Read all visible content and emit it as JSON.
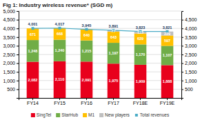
{
  "chart_data": {
    "type": "bar",
    "title": "Fig 1: Industry wireless revenue* (SGD m)",
    "categories": [
      "FY14",
      "FY15",
      "FY16",
      "FY17",
      "FY18E",
      "FY19E"
    ],
    "stacked": true,
    "data_labels": true,
    "grid": true,
    "legend": "bottom",
    "series": [
      {
        "name": "SingTel",
        "color": "#e8001c",
        "values": [
          2082,
          2110,
          2091,
          1975,
          1909,
          1888
        ],
        "value_labels": [
          "2,082",
          "2,110",
          "2,091",
          "1,975",
          "1,909",
          "1,888"
        ]
      },
      {
        "name": "StarHub",
        "color": "#70ad47",
        "values": [
          1248,
          1240,
          1215,
          1197,
          1170,
          1107
        ],
        "value_labels": [
          "1,248",
          "1,240",
          "1,215",
          "1,197",
          "1,170",
          "1,107"
        ]
      },
      {
        "name": "M1",
        "color": "#ffc000",
        "values": [
          671,
          668,
          640,
          643,
          629,
          597
        ]
      },
      {
        "name": "New players",
        "color": "#bfbfbf",
        "values": [
          0,
          0,
          0,
          77,
          115,
          229
        ],
        "value_labels": [
          null,
          null,
          null,
          "77",
          "115",
          "229"
        ]
      },
      {
        "name": "Total revenues",
        "color": "#4bacc6",
        "type": "line",
        "marker": "square",
        "axis": "y2",
        "values": [
          4001,
          4017,
          3945,
          3891,
          3823,
          3821
        ],
        "value_labels": [
          "4,001",
          "4,017",
          "3,945",
          "3,891",
          "3,823",
          "3,821"
        ]
      }
    ],
    "ylim": [
      0,
      5000
    ],
    "yticks": [
      500,
      {
        "value": 1000,
        "label": "1,000"
      },
      {
        "value": 1500,
        "label": "1,500"
      },
      {
        "value": 2000,
        "label": "2,000"
      },
      {
        "value": 2500,
        "label": "2,500"
      },
      {
        "value": 3000,
        "label": "3,000"
      },
      {
        "value": 3500,
        "label": "3,500"
      },
      {
        "value": 4000,
        "label": "4,000"
      },
      {
        "value": 4500,
        "label": "4,500"
      },
      {
        "value": 5000,
        "label": "5,000"
      }
    ],
    "y2lim": [
      0,
      5000
    ],
    "y2ticks": [
      500,
      {
        "value": 1000,
        "label": "1,000"
      },
      {
        "value": 1500,
        "label": "1,500"
      },
      {
        "value": 2000,
        "label": "2,000"
      },
      {
        "value": 2500,
        "label": "2,500"
      },
      {
        "value": 3000,
        "label": "3,000"
      },
      {
        "value": 3500,
        "label": "3,500"
      },
      {
        "value": 4000,
        "label": "4,000"
      },
      {
        "value": 4500,
        "label": "4,500"
      }
    ]
  }
}
